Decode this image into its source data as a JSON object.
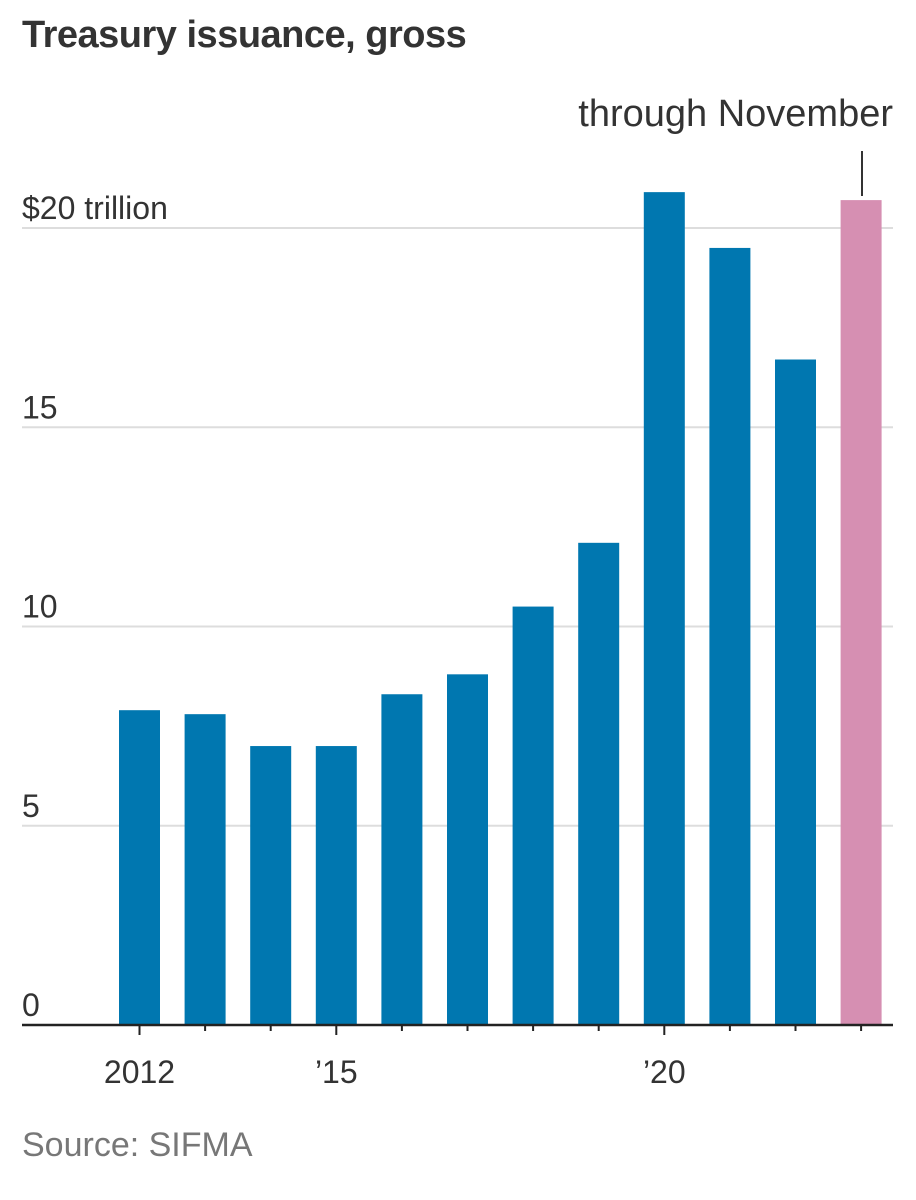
{
  "title": "Treasury issuance, gross",
  "source": "Source: SIFMA",
  "annotation": "through November",
  "colors": {
    "bar": "#0077b0",
    "highlight": "#d68fb2",
    "grid": "#dddddd",
    "axis": "#222222"
  },
  "chart_data": {
    "type": "bar",
    "title": "Treasury issuance, gross",
    "x": [
      2012,
      2013,
      2014,
      2015,
      2016,
      2017,
      2018,
      2019,
      2020,
      2021,
      2022,
      2023
    ],
    "values": [
      7.9,
      7.8,
      7.0,
      7.0,
      8.3,
      8.8,
      10.5,
      12.1,
      20.9,
      19.5,
      16.7,
      20.7
    ],
    "highlight_index": 11,
    "ylim": [
      0,
      22
    ],
    "yticks": [
      0,
      5,
      10,
      15,
      20
    ],
    "ytick_labels": [
      "0",
      "5",
      "10",
      "15",
      "$20 trillion"
    ],
    "xtick_labels": [
      {
        "year": 2012,
        "label": "2012"
      },
      {
        "year": 2015,
        "label": "’15"
      },
      {
        "year": 2020,
        "label": "’20"
      }
    ],
    "grid": true
  }
}
